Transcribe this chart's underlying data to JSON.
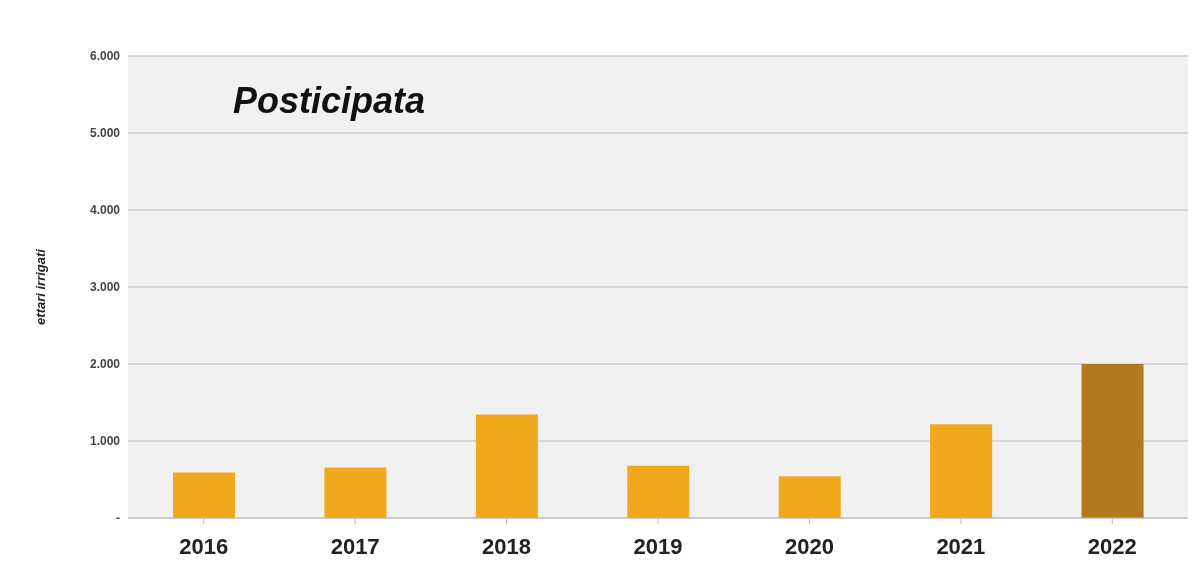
{
  "chart_data": {
    "type": "bar",
    "title": "Posticipata",
    "ylabel": "ettari irrigati",
    "categories": [
      "2016",
      "2017",
      "2018",
      "2019",
      "2020",
      "2021",
      "2022"
    ],
    "values": [
      590,
      655,
      1345,
      680,
      543,
      1218,
      2000
    ],
    "colors": [
      "#f0a81c",
      "#f0a81c",
      "#f0a81c",
      "#f0a81c",
      "#f0a81c",
      "#f0a81c",
      "#b07a1c"
    ],
    "ylim": [
      0,
      6000
    ],
    "yticks": [
      {
        "value": 0,
        "label": "-"
      },
      {
        "value": 1000,
        "label": "1.000"
      },
      {
        "value": 2000,
        "label": "2.000"
      },
      {
        "value": 3000,
        "label": "3.000"
      },
      {
        "value": 4000,
        "label": "4.000"
      },
      {
        "value": 5000,
        "label": "5.000"
      },
      {
        "value": 6000,
        "label": "6.000"
      }
    ],
    "grid": "y"
  }
}
